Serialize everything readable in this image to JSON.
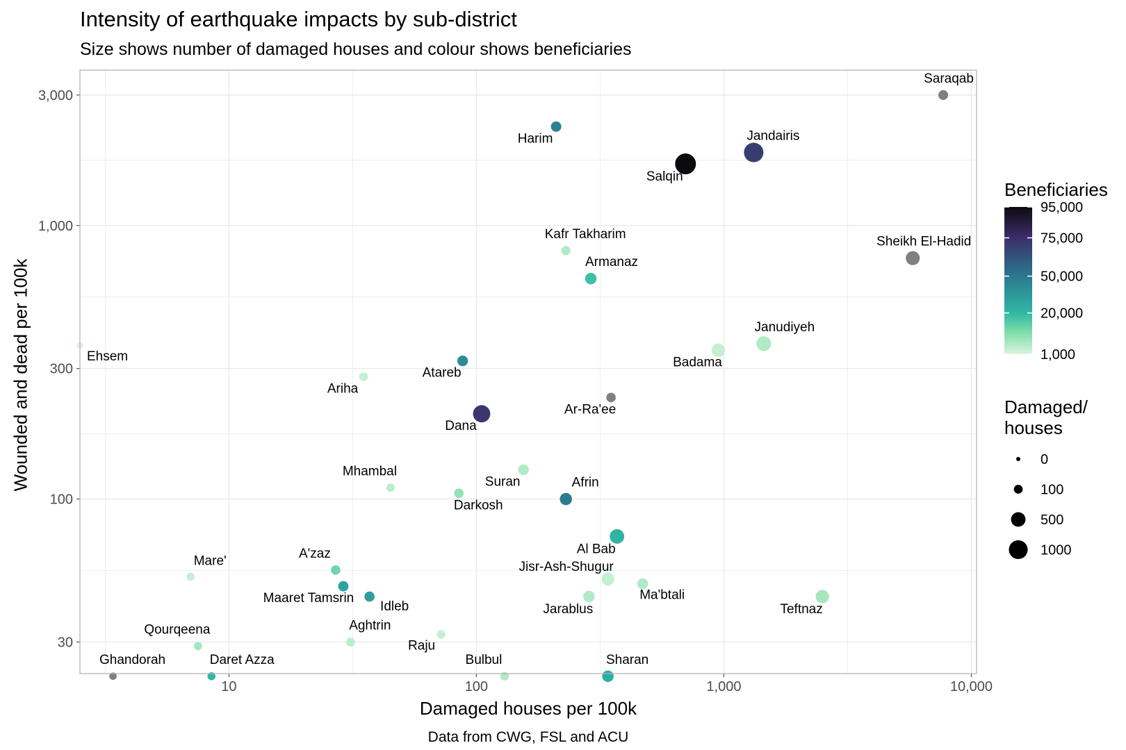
{
  "chart_data": {
    "type": "scatter",
    "title": "Intensity of earthquake impacts by sub-district",
    "subtitle": "Size shows number of damaged houses and colour shows beneficiaries",
    "xlabel": "Damaged houses per 100k",
    "ylabel": "Wounded and dead per 100k",
    "caption": "Data from CWG, FSL and ACU",
    "x_scale": "log10",
    "y_scale": "log10",
    "xlim": [
      2.5,
      10500
    ],
    "ylim": [
      23,
      3700
    ],
    "x_ticks": [
      10,
      100,
      1000,
      10000
    ],
    "x_tick_labels": [
      "10",
      "100",
      "1,000",
      "10,000"
    ],
    "y_ticks": [
      30,
      100,
      300,
      1000,
      3000
    ],
    "y_tick_labels": [
      "30",
      "100",
      "300",
      "1,000",
      "3,000"
    ],
    "grid": true,
    "legend_position": "right",
    "colour_legend": {
      "title": "Beneficiaries",
      "breaks": [
        95000,
        75000,
        50000,
        20000,
        1000
      ],
      "labels": [
        "95,000",
        "75,000",
        "50,000",
        "20,000",
        "1,000"
      ],
      "colors": [
        "#0d0a0f",
        "#3b2e6a",
        "#2a788e",
        "#2fb8a4",
        "#7fdca8",
        "#d8f5df"
      ],
      "na_color": "#808080"
    },
    "size_legend": {
      "title_lines": [
        "Damaged/",
        "houses"
      ],
      "breaks": [
        0,
        100,
        500,
        1000
      ],
      "labels": [
        "0",
        "100",
        "500",
        "1000"
      ]
    },
    "points": [
      {
        "name": "Saraqab",
        "x": 7700,
        "y": 3000,
        "damaged": 150,
        "beneficiaries": null
      },
      {
        "name": "Harim",
        "x": 210,
        "y": 2300,
        "damaged": 180,
        "beneficiaries": 45000
      },
      {
        "name": "Jandairis",
        "x": 1320,
        "y": 1850,
        "damaged": 1100,
        "beneficiaries": 70000
      },
      {
        "name": "Salqin",
        "x": 700,
        "y": 1680,
        "damaged": 1300,
        "beneficiaries": 95000
      },
      {
        "name": "Kafr Takharim",
        "x": 230,
        "y": 810,
        "damaged": 120,
        "beneficiaries": 5000
      },
      {
        "name": "Armanaz",
        "x": 290,
        "y": 640,
        "damaged": 250,
        "beneficiaries": 18000
      },
      {
        "name": "Sheikh El-Hadid",
        "x": 5800,
        "y": 760,
        "damaged": 450,
        "beneficiaries": null
      },
      {
        "name": "Janudiyeh",
        "x": 1450,
        "y": 370,
        "damaged": 520,
        "beneficiaries": 5000
      },
      {
        "name": "Badama",
        "x": 950,
        "y": 350,
        "damaged": 400,
        "beneficiaries": 3000
      },
      {
        "name": "Ehsem",
        "x": 2.5,
        "y": 365,
        "damaged": 30,
        "beneficiaries": 1000
      },
      {
        "name": "Atareb",
        "x": 88,
        "y": 320,
        "damaged": 200,
        "beneficiaries": 40000
      },
      {
        "name": "Ariha",
        "x": 35,
        "y": 280,
        "damaged": 100,
        "beneficiaries": 3000
      },
      {
        "name": "Ar-Ra'ee",
        "x": 350,
        "y": 235,
        "damaged": 130,
        "beneficiaries": null
      },
      {
        "name": "Dana",
        "x": 105,
        "y": 205,
        "damaged": 800,
        "beneficiaries": 72000
      },
      {
        "name": "Suran",
        "x": 155,
        "y": 128,
        "damaged": 200,
        "beneficiaries": 5000
      },
      {
        "name": "Mhambal",
        "x": 45,
        "y": 110,
        "damaged": 80,
        "beneficiaries": 4000
      },
      {
        "name": "Darkosh",
        "x": 85,
        "y": 105,
        "damaged": 130,
        "beneficiaries": 8000
      },
      {
        "name": "Afrin",
        "x": 230,
        "y": 100,
        "damaged": 300,
        "beneficiaries": 48000
      },
      {
        "name": "Al Bab",
        "x": 370,
        "y": 73,
        "damaged": 500,
        "beneficiaries": 22000
      },
      {
        "name": "Mare'",
        "x": 7,
        "y": 52,
        "damaged": 70,
        "beneficiaries": 3000
      },
      {
        "name": "A'zaz",
        "x": 27,
        "y": 55,
        "damaged": 130,
        "beneficiaries": 12000
      },
      {
        "name": "Maaret Tamsrin",
        "x": 29,
        "y": 48,
        "damaged": 180,
        "beneficiaries": 30000
      },
      {
        "name": "Idleb",
        "x": 37,
        "y": 44,
        "damaged": 170,
        "beneficiaries": 32000
      },
      {
        "name": "Jisr-Ash-Shugur",
        "x": 340,
        "y": 51,
        "damaged": 350,
        "beneficiaries": 3000
      },
      {
        "name": "Ma'btali",
        "x": 470,
        "y": 49,
        "damaged": 200,
        "beneficiaries": 5000
      },
      {
        "name": "Jarablus",
        "x": 285,
        "y": 44,
        "damaged": 250,
        "beneficiaries": 5000
      },
      {
        "name": "Teftnaz",
        "x": 2500,
        "y": 44,
        "damaged": 400,
        "beneficiaries": 6000
      },
      {
        "name": "Qourqeena",
        "x": 7.5,
        "y": 29,
        "damaged": 80,
        "beneficiaries": 6000
      },
      {
        "name": "Aghtrin",
        "x": 31,
        "y": 30,
        "damaged": 100,
        "beneficiaries": 4000
      },
      {
        "name": "Raju",
        "x": 72,
        "y": 32,
        "damaged": 90,
        "beneficiaries": 3000
      },
      {
        "name": "Ghandorah",
        "x": 3.4,
        "y": 22.5,
        "damaged": 50,
        "beneficiaries": null
      },
      {
        "name": "Daret Azza",
        "x": 8.5,
        "y": 22.5,
        "damaged": 70,
        "beneficiaries": 20000
      },
      {
        "name": "Bulbul",
        "x": 130,
        "y": 22.5,
        "damaged": 90,
        "beneficiaries": 5000
      },
      {
        "name": "Sharan",
        "x": 340,
        "y": 22.5,
        "damaged": 250,
        "beneficiaries": 25000
      }
    ]
  }
}
